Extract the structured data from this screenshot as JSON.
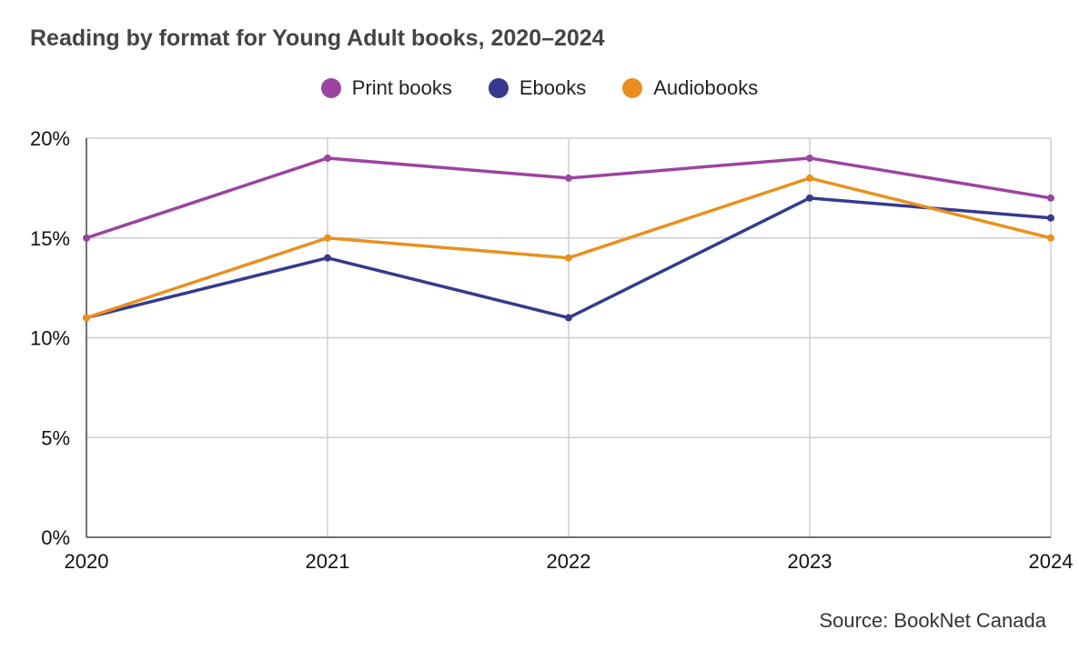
{
  "chart_data": {
    "type": "line",
    "title": "Reading by format for Young Adult books, 2020–2024",
    "x": [
      "2020",
      "2021",
      "2022",
      "2023",
      "2024"
    ],
    "series": [
      {
        "name": "Print books",
        "color": "#9b44a0",
        "values": [
          15,
          19,
          18,
          19,
          17
        ]
      },
      {
        "name": "Ebooks",
        "color": "#363a8e",
        "values": [
          11,
          14,
          11,
          17,
          16
        ]
      },
      {
        "name": "Audiobooks",
        "color": "#e8901f",
        "values": [
          11,
          15,
          14,
          18,
          15
        ]
      }
    ],
    "ylim": [
      0,
      20
    ],
    "yticks": [
      "0%",
      "5%",
      "10%",
      "15%",
      "20%"
    ],
    "ytick_values": [
      0,
      5,
      10,
      15,
      20
    ],
    "xlabel": "",
    "ylabel": "",
    "legend": "top-center",
    "grid": true,
    "source": "Source: BookNet Canada"
  }
}
